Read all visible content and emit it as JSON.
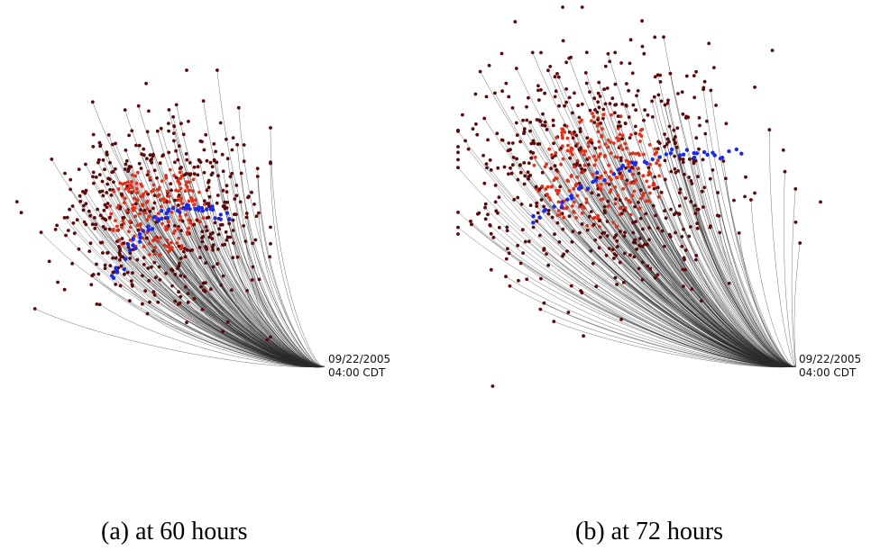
{
  "panels": [
    {
      "caption": "(a) at 60 hours",
      "timestamp": {
        "date": "09/22/2005",
        "time": "04:00 CDT"
      }
    },
    {
      "caption": "(b) at 72 hours",
      "timestamp": {
        "date": "09/22/2005",
        "time": "04:00 CDT"
      }
    }
  ],
  "colors": {
    "track_line": "#2a2a2a",
    "point_outer": "#5a0a0a",
    "point_inner": "#e0301a",
    "point_highlight": "#1a2ae6"
  }
}
